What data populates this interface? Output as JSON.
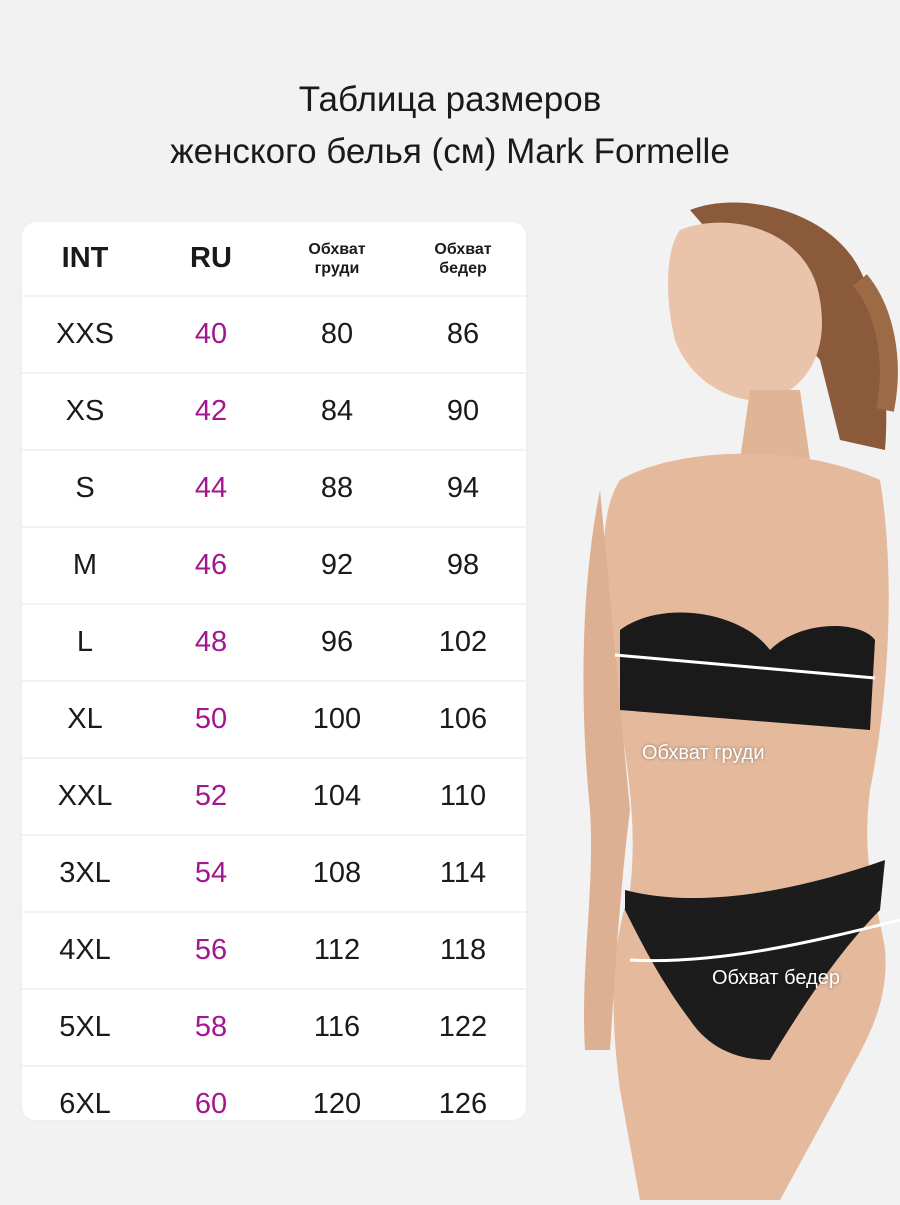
{
  "title": {
    "line1": "Таблица размеров",
    "line2": "женского белья (см) Mark Formelle"
  },
  "table": {
    "headers": [
      "INT",
      "RU",
      "Обхват\nгруди",
      "Обхват\nбедер"
    ],
    "rows": [
      [
        "XXS",
        "40",
        "80",
        "86"
      ],
      [
        "XS",
        "42",
        "84",
        "90"
      ],
      [
        "S",
        "44",
        "88",
        "94"
      ],
      [
        "M",
        "46",
        "92",
        "98"
      ],
      [
        "L",
        "48",
        "96",
        "102"
      ],
      [
        "XL",
        "50",
        "100",
        "106"
      ],
      [
        "XXL",
        "52",
        "104",
        "110"
      ],
      [
        "3XL",
        "54",
        "108",
        "114"
      ],
      [
        "4XL",
        "56",
        "112",
        "118"
      ],
      [
        "5XL",
        "58",
        "116",
        "122"
      ],
      [
        "6XL",
        "60",
        "120",
        "126"
      ]
    ]
  },
  "photo": {
    "bust_label": "Обхват груди",
    "hips_label": "Обхват бедер"
  },
  "colors": {
    "ru_accent": "#a3168f",
    "background": "#f2f2f2"
  }
}
